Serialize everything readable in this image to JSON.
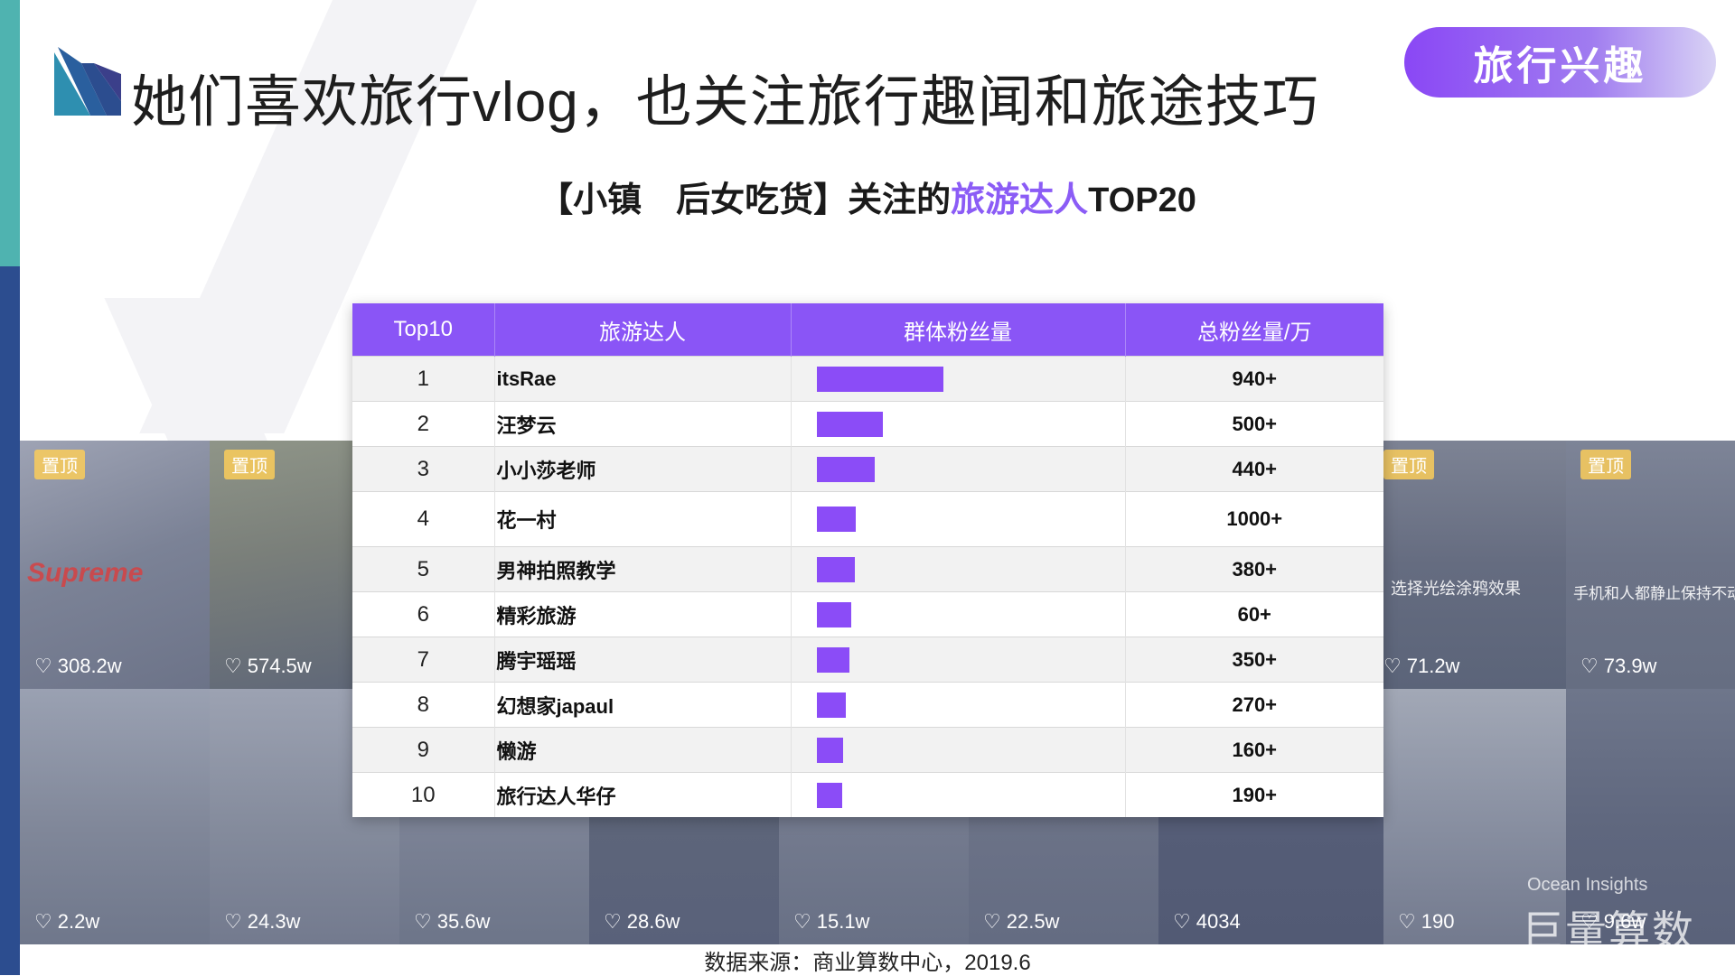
{
  "header": {
    "title": "她们喜欢旅行vlog，也关注旅行趣闻和旅途技巧",
    "badge": "旅行兴趣"
  },
  "subtitle": {
    "prefix": "【小镇　后女吃货】关注的",
    "highlight": "旅游达人",
    "suffix": "TOP20"
  },
  "colors": {
    "accent_purple": "#8a55f6",
    "bar_purple": "#8b4cf7",
    "highlight_purple": "#8b5cf6",
    "left_bar_teal": "#4fb3b0",
    "left_bar_navy": "#2c4d8f"
  },
  "table": {
    "headers": [
      "Top10",
      "旅游达人",
      "群体粉丝量",
      "总粉丝量/万"
    ],
    "rows": [
      {
        "rank": "1",
        "name": "itsRae",
        "group_fans": 1.0,
        "total": "940+"
      },
      {
        "rank": "2",
        "name": "汪梦云",
        "group_fans": 0.52,
        "total": "500+"
      },
      {
        "rank": "3",
        "name": "小小莎老师",
        "group_fans": 0.46,
        "total": "440+"
      },
      {
        "rank": "4",
        "name": "花一村",
        "group_fans": 0.31,
        "total": "1000+"
      },
      {
        "rank": "5",
        "name": "男神拍照教学",
        "group_fans": 0.3,
        "total": "380+"
      },
      {
        "rank": "6",
        "name": "精彩旅游",
        "group_fans": 0.27,
        "total": "60+"
      },
      {
        "rank": "7",
        "name": "腾宇瑶瑶",
        "group_fans": 0.26,
        "total": "350+"
      },
      {
        "rank": "8",
        "name": "幻想家japaul",
        "group_fans": 0.23,
        "total": "270+"
      },
      {
        "rank": "9",
        "name": "懒游",
        "group_fans": 0.21,
        "total": "160+"
      },
      {
        "rank": "10",
        "name": "旅行达人华仔",
        "group_fans": 0.2,
        "total": "190+"
      }
    ]
  },
  "thumbnails": {
    "row1": [
      {
        "likes": "308.2w",
        "pin": "置顶",
        "caption": "Supreme"
      },
      {
        "likes": "574.5w",
        "pin": "置顶",
        "caption": ""
      },
      {
        "likes": "71.2w",
        "pin": "置顶",
        "caption": "选择光绘涂鸦效果"
      },
      {
        "likes": "73.9w",
        "pin": "置顶",
        "caption": "手机和人都静止保持不动"
      }
    ],
    "row2": [
      {
        "likes": "2.2w"
      },
      {
        "likes": "24.3w"
      },
      {
        "likes": "35.6w"
      },
      {
        "likes": "28.6w"
      },
      {
        "likes": "15.1w"
      },
      {
        "likes": "22.5w"
      },
      {
        "likes": "4034"
      },
      {
        "likes": "190"
      },
      {
        "likes": "9.6w"
      }
    ],
    "heart_icon": "heart-icon",
    "watermark_en": "Ocean Insights",
    "watermark_cn": "巨量算数"
  },
  "footer": {
    "source": "数据来源：商业算数中心，2019.6"
  }
}
